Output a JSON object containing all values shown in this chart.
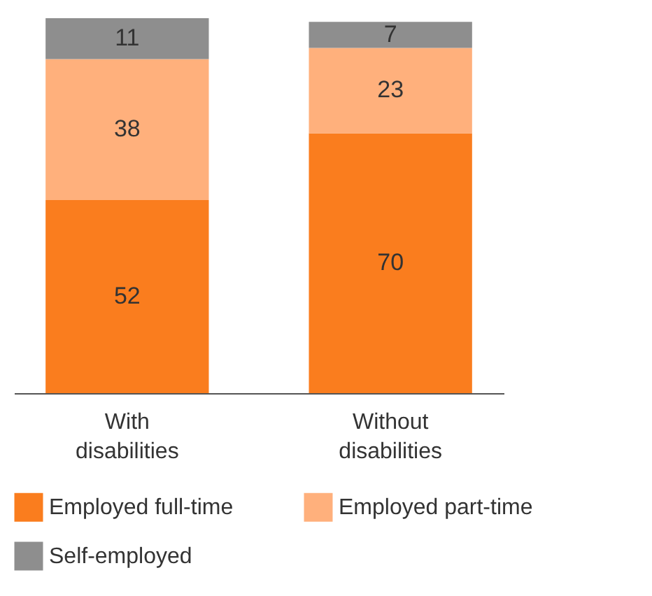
{
  "chart_data": {
    "type": "bar",
    "stacked": true,
    "categories": [
      "With disabilities",
      "Without disabilities"
    ],
    "ylim": [
      0,
      101
    ],
    "data_labels": true,
    "legend": "bottom",
    "grid": false,
    "series": [
      {
        "name": "Employed full-time",
        "color": "#fa7d1e",
        "values": [
          52,
          70
        ]
      },
      {
        "name": "Employed part-time",
        "color": "#ffb07c",
        "values": [
          38,
          23
        ]
      },
      {
        "name": "Self-employed",
        "color": "#8e8e8e",
        "values": [
          11,
          7
        ]
      }
    ]
  }
}
